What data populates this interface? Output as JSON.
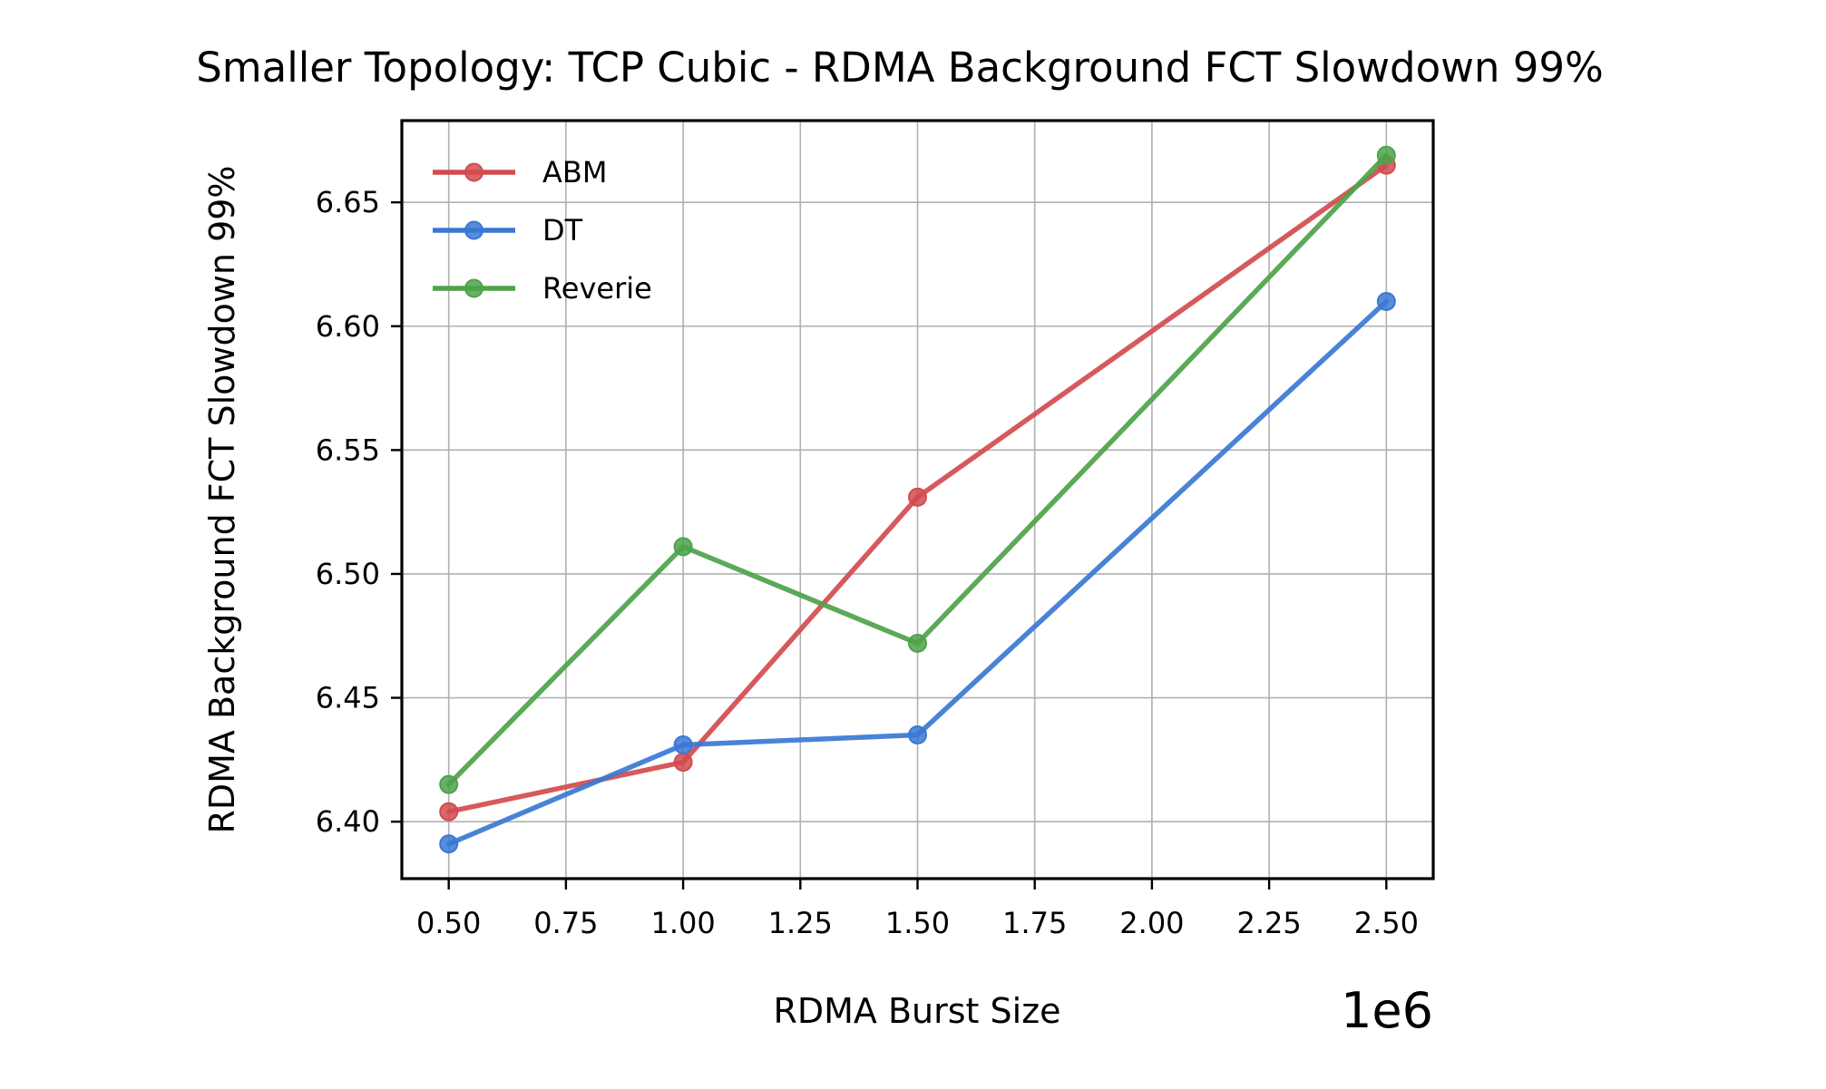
{
  "chart_data": {
    "type": "line",
    "title": "Smaller Topology: TCP Cubic - RDMA Background FCT Slowdown 99%",
    "xlabel": "RDMA Burst Size",
    "ylabel": "RDMA Background FCT Slowdown 99%",
    "x_offset_label": "1e6",
    "x": [
      0.5,
      1.0,
      1.5,
      2.5
    ],
    "xlim": [
      0.4,
      2.6
    ],
    "ylim": [
      6.377,
      6.683
    ],
    "xticks": [
      0.5,
      0.75,
      1.0,
      1.25,
      1.5,
      1.75,
      2.0,
      2.25,
      2.5
    ],
    "xtick_labels": [
      "0.50",
      "0.75",
      "1.00",
      "1.25",
      "1.50",
      "1.75",
      "2.00",
      "2.25",
      "2.50"
    ],
    "yticks": [
      6.4,
      6.45,
      6.5,
      6.55,
      6.6,
      6.65
    ],
    "ytick_labels": [
      "6.40",
      "6.45",
      "6.50",
      "6.55",
      "6.60",
      "6.65"
    ],
    "grid": true,
    "legend_position": "top-left",
    "series": [
      {
        "name": "ABM",
        "color": "#d24b4e",
        "values": [
          6.404,
          6.424,
          6.531,
          6.665
        ]
      },
      {
        "name": "DT",
        "color": "#3a78d4",
        "values": [
          6.391,
          6.431,
          6.435,
          6.61
        ]
      },
      {
        "name": "Reverie",
        "color": "#4ea24a",
        "values": [
          6.415,
          6.511,
          6.472,
          6.669
        ]
      }
    ]
  }
}
